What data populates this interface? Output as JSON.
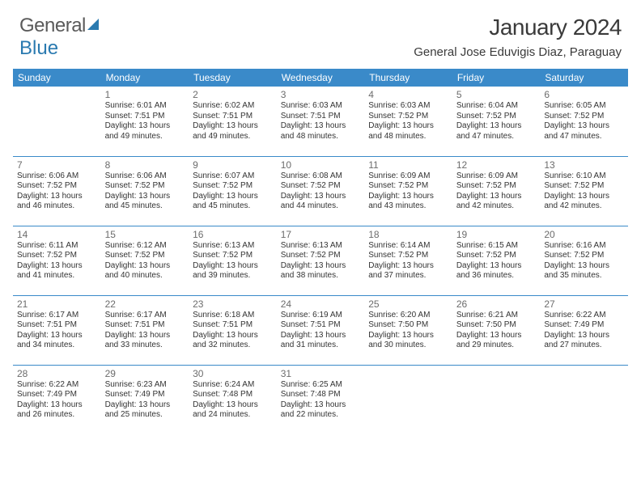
{
  "logo": {
    "word1": "General",
    "word2": "Blue"
  },
  "title": "January 2024",
  "location": "General Jose Eduvigis Diaz, Paraguay",
  "colors": {
    "header_bg": "#3a8ac9",
    "header_fg": "#ffffff",
    "row_sep": "#3a8ac9",
    "logo_gray": "#5a5a5a",
    "logo_blue": "#2a7ab0",
    "text": "#333333",
    "daynum": "#6c6c6c"
  },
  "day_headers": [
    "Sunday",
    "Monday",
    "Tuesday",
    "Wednesday",
    "Thursday",
    "Friday",
    "Saturday"
  ],
  "weeks": [
    [
      null,
      {
        "n": "1",
        "sr": "Sunrise: 6:01 AM",
        "ss": "Sunset: 7:51 PM",
        "d1": "Daylight: 13 hours",
        "d2": "and 49 minutes."
      },
      {
        "n": "2",
        "sr": "Sunrise: 6:02 AM",
        "ss": "Sunset: 7:51 PM",
        "d1": "Daylight: 13 hours",
        "d2": "and 49 minutes."
      },
      {
        "n": "3",
        "sr": "Sunrise: 6:03 AM",
        "ss": "Sunset: 7:51 PM",
        "d1": "Daylight: 13 hours",
        "d2": "and 48 minutes."
      },
      {
        "n": "4",
        "sr": "Sunrise: 6:03 AM",
        "ss": "Sunset: 7:52 PM",
        "d1": "Daylight: 13 hours",
        "d2": "and 48 minutes."
      },
      {
        "n": "5",
        "sr": "Sunrise: 6:04 AM",
        "ss": "Sunset: 7:52 PM",
        "d1": "Daylight: 13 hours",
        "d2": "and 47 minutes."
      },
      {
        "n": "6",
        "sr": "Sunrise: 6:05 AM",
        "ss": "Sunset: 7:52 PM",
        "d1": "Daylight: 13 hours",
        "d2": "and 47 minutes."
      }
    ],
    [
      {
        "n": "7",
        "sr": "Sunrise: 6:06 AM",
        "ss": "Sunset: 7:52 PM",
        "d1": "Daylight: 13 hours",
        "d2": "and 46 minutes."
      },
      {
        "n": "8",
        "sr": "Sunrise: 6:06 AM",
        "ss": "Sunset: 7:52 PM",
        "d1": "Daylight: 13 hours",
        "d2": "and 45 minutes."
      },
      {
        "n": "9",
        "sr": "Sunrise: 6:07 AM",
        "ss": "Sunset: 7:52 PM",
        "d1": "Daylight: 13 hours",
        "d2": "and 45 minutes."
      },
      {
        "n": "10",
        "sr": "Sunrise: 6:08 AM",
        "ss": "Sunset: 7:52 PM",
        "d1": "Daylight: 13 hours",
        "d2": "and 44 minutes."
      },
      {
        "n": "11",
        "sr": "Sunrise: 6:09 AM",
        "ss": "Sunset: 7:52 PM",
        "d1": "Daylight: 13 hours",
        "d2": "and 43 minutes."
      },
      {
        "n": "12",
        "sr": "Sunrise: 6:09 AM",
        "ss": "Sunset: 7:52 PM",
        "d1": "Daylight: 13 hours",
        "d2": "and 42 minutes."
      },
      {
        "n": "13",
        "sr": "Sunrise: 6:10 AM",
        "ss": "Sunset: 7:52 PM",
        "d1": "Daylight: 13 hours",
        "d2": "and 42 minutes."
      }
    ],
    [
      {
        "n": "14",
        "sr": "Sunrise: 6:11 AM",
        "ss": "Sunset: 7:52 PM",
        "d1": "Daylight: 13 hours",
        "d2": "and 41 minutes."
      },
      {
        "n": "15",
        "sr": "Sunrise: 6:12 AM",
        "ss": "Sunset: 7:52 PM",
        "d1": "Daylight: 13 hours",
        "d2": "and 40 minutes."
      },
      {
        "n": "16",
        "sr": "Sunrise: 6:13 AM",
        "ss": "Sunset: 7:52 PM",
        "d1": "Daylight: 13 hours",
        "d2": "and 39 minutes."
      },
      {
        "n": "17",
        "sr": "Sunrise: 6:13 AM",
        "ss": "Sunset: 7:52 PM",
        "d1": "Daylight: 13 hours",
        "d2": "and 38 minutes."
      },
      {
        "n": "18",
        "sr": "Sunrise: 6:14 AM",
        "ss": "Sunset: 7:52 PM",
        "d1": "Daylight: 13 hours",
        "d2": "and 37 minutes."
      },
      {
        "n": "19",
        "sr": "Sunrise: 6:15 AM",
        "ss": "Sunset: 7:52 PM",
        "d1": "Daylight: 13 hours",
        "d2": "and 36 minutes."
      },
      {
        "n": "20",
        "sr": "Sunrise: 6:16 AM",
        "ss": "Sunset: 7:52 PM",
        "d1": "Daylight: 13 hours",
        "d2": "and 35 minutes."
      }
    ],
    [
      {
        "n": "21",
        "sr": "Sunrise: 6:17 AM",
        "ss": "Sunset: 7:51 PM",
        "d1": "Daylight: 13 hours",
        "d2": "and 34 minutes."
      },
      {
        "n": "22",
        "sr": "Sunrise: 6:17 AM",
        "ss": "Sunset: 7:51 PM",
        "d1": "Daylight: 13 hours",
        "d2": "and 33 minutes."
      },
      {
        "n": "23",
        "sr": "Sunrise: 6:18 AM",
        "ss": "Sunset: 7:51 PM",
        "d1": "Daylight: 13 hours",
        "d2": "and 32 minutes."
      },
      {
        "n": "24",
        "sr": "Sunrise: 6:19 AM",
        "ss": "Sunset: 7:51 PM",
        "d1": "Daylight: 13 hours",
        "d2": "and 31 minutes."
      },
      {
        "n": "25",
        "sr": "Sunrise: 6:20 AM",
        "ss": "Sunset: 7:50 PM",
        "d1": "Daylight: 13 hours",
        "d2": "and 30 minutes."
      },
      {
        "n": "26",
        "sr": "Sunrise: 6:21 AM",
        "ss": "Sunset: 7:50 PM",
        "d1": "Daylight: 13 hours",
        "d2": "and 29 minutes."
      },
      {
        "n": "27",
        "sr": "Sunrise: 6:22 AM",
        "ss": "Sunset: 7:49 PM",
        "d1": "Daylight: 13 hours",
        "d2": "and 27 minutes."
      }
    ],
    [
      {
        "n": "28",
        "sr": "Sunrise: 6:22 AM",
        "ss": "Sunset: 7:49 PM",
        "d1": "Daylight: 13 hours",
        "d2": "and 26 minutes."
      },
      {
        "n": "29",
        "sr": "Sunrise: 6:23 AM",
        "ss": "Sunset: 7:49 PM",
        "d1": "Daylight: 13 hours",
        "d2": "and 25 minutes."
      },
      {
        "n": "30",
        "sr": "Sunrise: 6:24 AM",
        "ss": "Sunset: 7:48 PM",
        "d1": "Daylight: 13 hours",
        "d2": "and 24 minutes."
      },
      {
        "n": "31",
        "sr": "Sunrise: 6:25 AM",
        "ss": "Sunset: 7:48 PM",
        "d1": "Daylight: 13 hours",
        "d2": "and 22 minutes."
      },
      null,
      null,
      null
    ]
  ]
}
